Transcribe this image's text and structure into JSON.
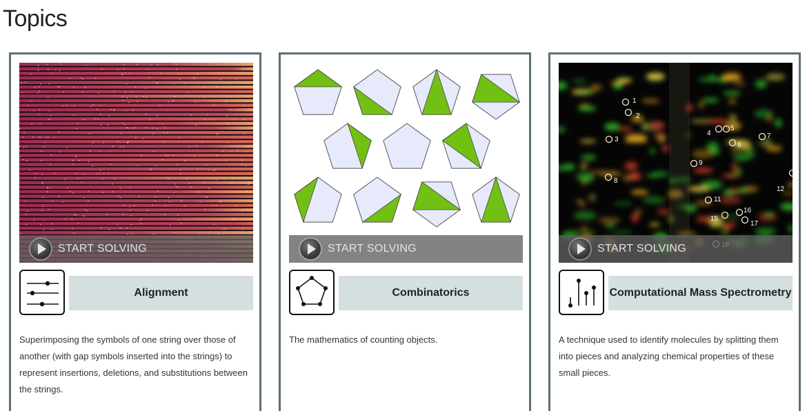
{
  "page": {
    "title": "Topics"
  },
  "colors": {
    "card_border": "#5d6f72",
    "name_box_bg": "#d6dfe0",
    "green": "#73c014",
    "pale_blue": "#e6eafa"
  },
  "cards": [
    {
      "name": "Alignment",
      "button_label": "START SOLVING",
      "icon": "alignment-sliders-icon",
      "description": "Superimposing the symbols of one string over those of another (with gap symbols inserted into the strings) to represent insertions, deletions, and substitutions between the strings."
    },
    {
      "name": "Combinatorics",
      "button_label": "START SOLVING",
      "icon": "pentagon-graph-icon",
      "description": "The mathematics of counting objects."
    },
    {
      "name": "Computational Mass Spectrometry",
      "button_label": "START SOLVING",
      "icon": "spectrum-peaks-icon",
      "description": "A technique used to identify molecules by splitting them into pieces and analyzing chemical properties of these small pieces.",
      "spot_labels": [
        "1",
        "2",
        "3",
        "4",
        "5",
        "6",
        "7",
        "8",
        "9",
        "11",
        "12",
        "15",
        "16",
        "17",
        "18"
      ]
    }
  ]
}
